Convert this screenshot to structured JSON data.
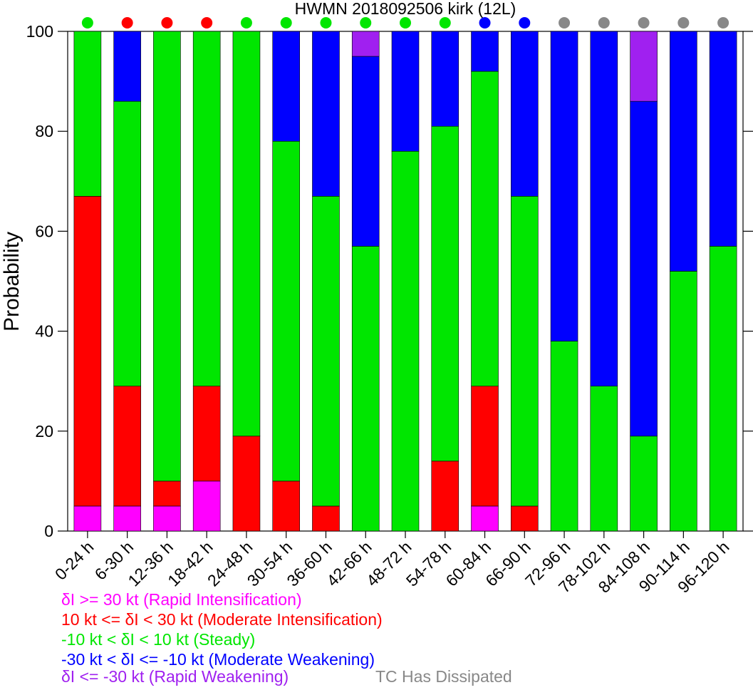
{
  "chart_data": {
    "type": "bar",
    "stacked": true,
    "title": "HWMN 2018092506 kirk (12L)",
    "xlabel": "",
    "ylabel": "Probability",
    "ylim": [
      0,
      100
    ],
    "yticks": [
      0,
      20,
      40,
      60,
      80,
      100
    ],
    "categories": [
      "0-24 h",
      "6-30 h",
      "12-36 h",
      "18-42 h",
      "24-48 h",
      "30-54 h",
      "36-60 h",
      "42-66 h",
      "48-72 h",
      "54-78 h",
      "60-84 h",
      "66-90 h",
      "72-96 h",
      "78-102 h",
      "84-108 h",
      "90-114 h",
      "96-120 h"
    ],
    "series": [
      {
        "name": "δI >= 30 kt (Rapid Intensification)",
        "color": "#ff00ff",
        "values": [
          5,
          5,
          5,
          10,
          0,
          0,
          0,
          0,
          0,
          0,
          5,
          0,
          0,
          0,
          0,
          0,
          0
        ]
      },
      {
        "name": "10 kt <= δI < 30 kt (Moderate Intensification)",
        "color": "#ff0000",
        "values": [
          62,
          24,
          5,
          19,
          19,
          10,
          5,
          0,
          0,
          14,
          24,
          5,
          0,
          0,
          0,
          0,
          0
        ]
      },
      {
        "name": "-10 kt < δI < 10 kt (Steady)",
        "color": "#00e600",
        "values": [
          33,
          57,
          90,
          71,
          81,
          68,
          62,
          57,
          76,
          67,
          63,
          62,
          38,
          29,
          19,
          52,
          57
        ]
      },
      {
        "name": "-30 kt < δI <= -10 kt (Moderate Weakening)",
        "color": "#0000ff",
        "values": [
          0,
          14,
          0,
          0,
          0,
          22,
          33,
          38,
          24,
          19,
          8,
          33,
          62,
          71,
          67,
          48,
          43
        ]
      },
      {
        "name": "δI <= -30 kt (Rapid Weakening)",
        "color": "#a020f0",
        "values": [
          0,
          0,
          0,
          0,
          0,
          0,
          0,
          5,
          0,
          0,
          0,
          0,
          0,
          0,
          14,
          0,
          0
        ]
      }
    ],
    "category_indicators": [
      "steady",
      "moderate-intensification",
      "moderate-intensification",
      "moderate-intensification",
      "steady",
      "steady",
      "steady",
      "steady",
      "steady",
      "steady",
      "moderate-weakening",
      "moderate-weakening",
      "dissipated",
      "dissipated",
      "dissipated",
      "dissipated",
      "dissipated"
    ],
    "indicator_colors": {
      "steady": "#00e600",
      "moderate-intensification": "#ff0000",
      "moderate-weakening": "#0000ff",
      "dissipated": "#888888"
    },
    "dissipated_label": "TC Has Dissipated",
    "legend_colors": [
      "#ff00ff",
      "#ff0000",
      "#00e600",
      "#0000ff",
      "#a020f0"
    ],
    "grid": false,
    "legend_placement": "bottom-left"
  }
}
